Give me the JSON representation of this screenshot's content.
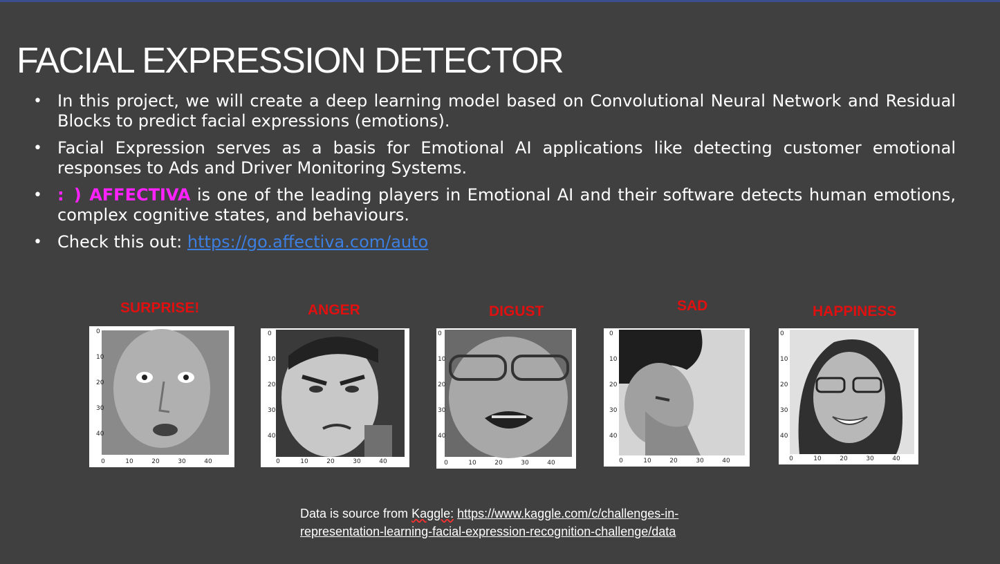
{
  "slide": {
    "title": "FACIAL EXPRESSION DETECTOR",
    "bullet_glyph": "•",
    "bullets": [
      {
        "text": "In this project, we will create a deep learning model based on Convolutional Neural Network and Residual Blocks to predict facial expressions (emotions)."
      },
      {
        "text": "Facial Expression serves as a basis for Emotional AI applications like detecting customer emotional responses to Ads and Driver Monitoring Systems."
      },
      {
        "smiley": ": )",
        "brand": "AFFECTIVA",
        "text": " is one of the leading players in Emotional AI and their software detects human emotions, complex cognitive states, and behaviours."
      },
      {
        "text": "Check this out: ",
        "link": "https://go.affectiva.com/auto"
      }
    ],
    "faces": [
      {
        "label": "SURPRISE!",
        "yticks": [
          "0",
          "10",
          "20",
          "30",
          "40"
        ],
        "xticks": [
          "0",
          "10",
          "20",
          "30",
          "40"
        ]
      },
      {
        "label": "ANGER",
        "yticks": [
          "0",
          "10",
          "20",
          "30",
          "40"
        ],
        "xticks": [
          "0",
          "10",
          "20",
          "30",
          "40"
        ]
      },
      {
        "label": "DIGUST",
        "yticks": [
          "0",
          "10",
          "20",
          "30",
          "40"
        ],
        "xticks": [
          "0",
          "10",
          "20",
          "30",
          "40"
        ]
      },
      {
        "label": "SAD",
        "yticks": [
          "0",
          "10",
          "20",
          "30",
          "40"
        ],
        "xticks": [
          "0",
          "10",
          "20",
          "30",
          "40"
        ]
      },
      {
        "label": "HAPPINESS",
        "yticks": [
          "0",
          "10",
          "20",
          "30",
          "40"
        ],
        "xticks": [
          "0",
          "10",
          "20",
          "30",
          "40"
        ]
      }
    ],
    "source": {
      "prefix": "Data is source from ",
      "kaggle": "Kaggle:",
      "space": " ",
      "url_line1": "https://www.kaggle.com/c/challenges-in-",
      "url_line2": "representation-learning-facial-expression-recognition-challenge/data"
    }
  }
}
